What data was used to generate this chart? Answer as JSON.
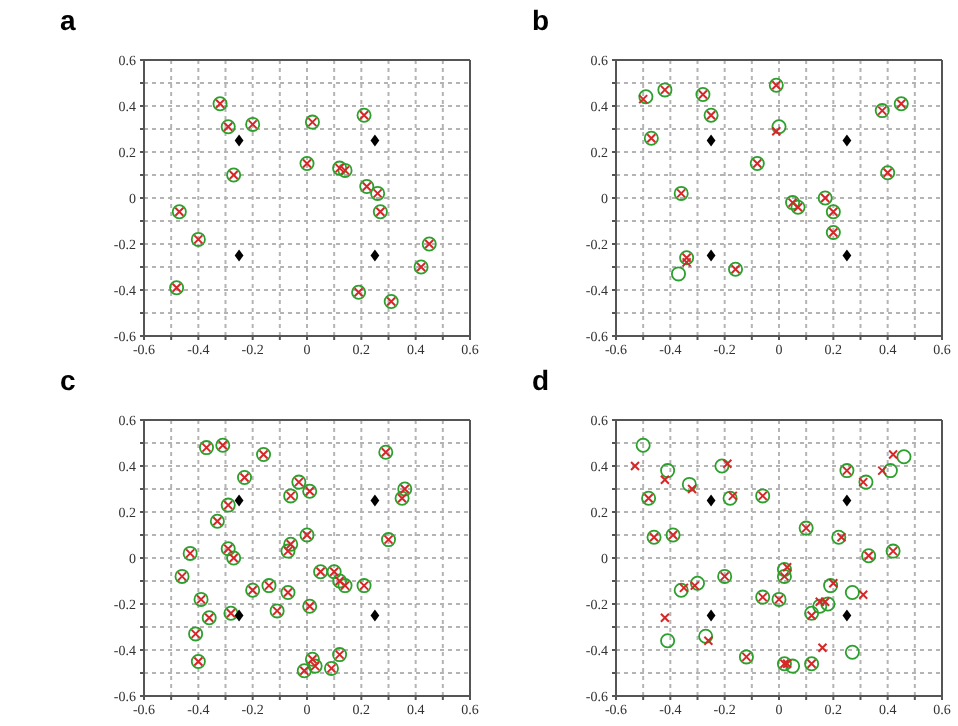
{
  "chart_data": [
    {
      "type": "scatter",
      "title": "a",
      "grid": true,
      "xlim": [
        -0.6,
        0.6
      ],
      "ylim": [
        -0.6,
        0.6
      ],
      "xticks": [
        -0.6,
        {
          "value": -0.5,
          "label": null
        },
        -0.4,
        {
          "value": -0.3,
          "label": null
        },
        -0.2,
        {
          "value": -0.1,
          "label": null
        },
        0,
        {
          "value": 0.1,
          "label": null
        },
        0.2,
        {
          "value": 0.3,
          "label": null
        },
        0.4,
        {
          "value": 0.5,
          "label": null
        },
        0.6
      ],
      "yticks": [
        -0.6,
        {
          "value": -0.5,
          "label": null
        },
        -0.4,
        {
          "value": -0.3,
          "label": null
        },
        -0.2,
        {
          "value": -0.1,
          "label": null
        },
        0,
        {
          "value": 0.1,
          "label": null
        },
        0.2,
        {
          "value": 0.3,
          "label": null
        },
        0.4,
        {
          "value": 0.5,
          "label": null
        },
        0.6
      ],
      "series": [
        {
          "color": "#2ca02c",
          "marker": "circle",
          "x": [
            -0.32,
            -0.29,
            -0.2,
            0.02,
            0.21,
            -0.27,
            0.0,
            0.12,
            0.14,
            0.22,
            0.26,
            0.27,
            -0.47,
            -0.4,
            -0.48,
            0.19,
            0.31,
            0.42,
            0.45
          ],
          "values": [
            0.41,
            0.31,
            0.32,
            0.33,
            0.36,
            0.1,
            0.15,
            0.13,
            0.12,
            0.05,
            0.02,
            -0.06,
            -0.06,
            -0.18,
            -0.39,
            -0.41,
            -0.45,
            -0.3,
            -0.2
          ]
        },
        {
          "color": "#d62728",
          "marker": "cross",
          "x": [
            -0.32,
            -0.29,
            -0.2,
            0.02,
            0.21,
            -0.27,
            0.0,
            0.12,
            0.14,
            0.22,
            0.26,
            0.27,
            -0.47,
            -0.4,
            -0.48,
            0.19,
            0.31,
            0.42,
            0.45
          ],
          "values": [
            0.41,
            0.31,
            0.32,
            0.33,
            0.36,
            0.1,
            0.15,
            0.13,
            0.12,
            0.05,
            0.02,
            -0.06,
            -0.06,
            -0.18,
            -0.39,
            -0.41,
            -0.45,
            -0.3,
            -0.2
          ]
        },
        {
          "color": "#000000",
          "marker": "diamond",
          "x": [
            -0.25,
            0.25,
            -0.25,
            0.25
          ],
          "values": [
            0.25,
            0.25,
            -0.25,
            -0.25
          ]
        }
      ]
    },
    {
      "type": "scatter",
      "title": "b",
      "grid": true,
      "xlim": [
        -0.6,
        0.6
      ],
      "ylim": [
        -0.6,
        0.6
      ],
      "xticks": [
        -0.6,
        {
          "value": -0.5,
          "label": null
        },
        -0.4,
        {
          "value": -0.3,
          "label": null
        },
        -0.2,
        {
          "value": -0.1,
          "label": null
        },
        0,
        {
          "value": 0.1,
          "label": null
        },
        0.2,
        {
          "value": 0.3,
          "label": null
        },
        0.4,
        {
          "value": 0.5,
          "label": null
        },
        0.6
      ],
      "yticks": [
        -0.6,
        {
          "value": -0.5,
          "label": null
        },
        -0.4,
        {
          "value": -0.3,
          "label": null
        },
        -0.2,
        {
          "value": -0.1,
          "label": null
        },
        0,
        {
          "value": 0.1,
          "label": null
        },
        0.2,
        {
          "value": 0.3,
          "label": null
        },
        0.4,
        {
          "value": 0.5,
          "label": null
        },
        0.6
      ],
      "series": [
        {
          "color": "#2ca02c",
          "marker": "circle",
          "x": [
            -0.49,
            -0.42,
            -0.28,
            -0.01,
            -0.25,
            -0.47,
            0.0,
            -0.08,
            -0.36,
            0.05,
            0.07,
            0.17,
            0.2,
            0.2,
            -0.16,
            -0.34,
            -0.37,
            0.38,
            0.45,
            0.4
          ],
          "values": [
            0.44,
            0.47,
            0.45,
            0.49,
            0.36,
            0.26,
            0.31,
            0.15,
            0.02,
            -0.02,
            -0.04,
            0.0,
            -0.06,
            -0.15,
            -0.31,
            -0.26,
            -0.33,
            0.38,
            0.41,
            0.11
          ]
        },
        {
          "color": "#d62728",
          "marker": "cross",
          "x": [
            -0.5,
            -0.42,
            -0.28,
            -0.01,
            -0.25,
            -0.47,
            -0.01,
            -0.08,
            -0.36,
            0.05,
            0.07,
            0.17,
            0.2,
            0.2,
            -0.16,
            -0.34,
            -0.34,
            0.38,
            0.45,
            0.4
          ],
          "values": [
            0.43,
            0.47,
            0.45,
            0.49,
            0.36,
            0.26,
            0.29,
            0.15,
            0.02,
            -0.02,
            -0.04,
            0.0,
            -0.06,
            -0.15,
            -0.31,
            -0.26,
            -0.28,
            0.38,
            0.41,
            0.11
          ]
        },
        {
          "color": "#000000",
          "marker": "diamond",
          "x": [
            -0.25,
            0.25,
            -0.25,
            0.25
          ],
          "values": [
            0.25,
            0.25,
            -0.25,
            -0.25
          ]
        }
      ]
    },
    {
      "type": "scatter",
      "title": "c",
      "grid": true,
      "xlim": [
        -0.6,
        0.6
      ],
      "ylim": [
        -0.6,
        0.6
      ],
      "xticks": [
        -0.6,
        {
          "value": -0.5,
          "label": null
        },
        -0.4,
        {
          "value": -0.3,
          "label": null
        },
        -0.2,
        {
          "value": -0.1,
          "label": null
        },
        0,
        {
          "value": 0.1,
          "label": null
        },
        0.2,
        {
          "value": 0.3,
          "label": null
        },
        0.4,
        {
          "value": 0.5,
          "label": null
        },
        0.6
      ],
      "yticks": [
        -0.6,
        {
          "value": -0.5,
          "label": null
        },
        -0.4,
        {
          "value": -0.3,
          "label": null
        },
        -0.2,
        {
          "value": -0.1,
          "label": null
        },
        0,
        {
          "value": 0.1,
          "label": null
        },
        0.2,
        {
          "value": 0.3,
          "label": null
        },
        0.4,
        {
          "value": 0.5,
          "label": null
        },
        0.6
      ],
      "series": [
        {
          "color": "#2ca02c",
          "marker": "circle",
          "x": [
            -0.37,
            -0.31,
            -0.16,
            -0.23,
            -0.29,
            -0.33,
            -0.29,
            -0.27,
            -0.43,
            -0.46,
            -0.39,
            -0.36,
            -0.28,
            -0.41,
            -0.4,
            -0.2,
            -0.14,
            -0.11,
            -0.07,
            -0.07,
            -0.06,
            -0.06,
            -0.03,
            0.01,
            0.0,
            0.01,
            0.05,
            0.1,
            0.12,
            0.14,
            0.21,
            0.12,
            0.02,
            0.03,
            -0.01,
            0.09,
            0.29,
            0.36,
            0.35,
            0.3
          ],
          "values": [
            0.48,
            0.49,
            0.45,
            0.35,
            0.23,
            0.16,
            0.04,
            0.0,
            0.02,
            -0.08,
            -0.18,
            -0.26,
            -0.24,
            -0.33,
            -0.45,
            -0.14,
            -0.12,
            -0.23,
            -0.15,
            0.03,
            0.06,
            0.27,
            0.33,
            0.29,
            0.1,
            -0.21,
            -0.06,
            -0.06,
            -0.1,
            -0.12,
            -0.12,
            -0.42,
            -0.44,
            -0.47,
            -0.49,
            -0.48,
            0.46,
            0.3,
            0.26,
            0.08
          ]
        },
        {
          "color": "#d62728",
          "marker": "cross",
          "x": [
            -0.37,
            -0.31,
            -0.16,
            -0.23,
            -0.29,
            -0.33,
            -0.29,
            -0.27,
            -0.43,
            -0.46,
            -0.39,
            -0.36,
            -0.28,
            -0.41,
            -0.4,
            -0.2,
            -0.14,
            -0.11,
            -0.07,
            -0.07,
            -0.06,
            -0.06,
            -0.03,
            0.01,
            0.0,
            0.01,
            0.05,
            0.1,
            0.12,
            0.14,
            0.21,
            0.12,
            0.02,
            0.03,
            -0.01,
            0.09,
            0.29,
            0.36,
            0.35,
            0.3
          ],
          "values": [
            0.48,
            0.49,
            0.45,
            0.35,
            0.23,
            0.16,
            0.04,
            0.0,
            0.02,
            -0.08,
            -0.18,
            -0.26,
            -0.24,
            -0.33,
            -0.45,
            -0.14,
            -0.12,
            -0.23,
            -0.15,
            0.03,
            0.06,
            0.27,
            0.33,
            0.29,
            0.1,
            -0.21,
            -0.06,
            -0.06,
            -0.1,
            -0.12,
            -0.12,
            -0.42,
            -0.44,
            -0.47,
            -0.49,
            -0.48,
            0.46,
            0.3,
            0.26,
            0.08
          ]
        },
        {
          "color": "#000000",
          "marker": "diamond",
          "x": [
            -0.25,
            0.25,
            -0.25,
            0.25
          ],
          "values": [
            0.25,
            0.25,
            -0.25,
            -0.25
          ]
        }
      ]
    },
    {
      "type": "scatter",
      "title": "d",
      "grid": true,
      "xlim": [
        -0.6,
        0.6
      ],
      "ylim": [
        -0.6,
        0.6
      ],
      "xticks": [
        -0.6,
        {
          "value": -0.5,
          "label": null
        },
        -0.4,
        {
          "value": -0.3,
          "label": null
        },
        -0.2,
        {
          "value": -0.1,
          "label": null
        },
        0,
        {
          "value": 0.1,
          "label": null
        },
        0.2,
        {
          "value": 0.3,
          "label": null
        },
        0.4,
        {
          "value": 0.5,
          "label": null
        },
        0.6
      ],
      "yticks": [
        -0.6,
        {
          "value": -0.5,
          "label": null
        },
        -0.4,
        {
          "value": -0.3,
          "label": null
        },
        -0.2,
        {
          "value": -0.1,
          "label": null
        },
        0,
        {
          "value": 0.1,
          "label": null
        },
        0.2,
        {
          "value": 0.3,
          "label": null
        },
        0.4,
        {
          "value": 0.5,
          "label": null
        },
        0.6
      ],
      "series": [
        {
          "color": "#2ca02c",
          "marker": "circle",
          "x": [
            -0.5,
            -0.41,
            -0.33,
            -0.48,
            -0.21,
            -0.18,
            -0.06,
            -0.46,
            -0.39,
            0.1,
            0.22,
            0.25,
            0.32,
            0.41,
            0.46,
            0.33,
            0.42,
            0.02,
            0.02,
            -0.2,
            -0.36,
            -0.3,
            -0.06,
            0.0,
            0.19,
            0.27,
            0.15,
            0.18,
            0.12,
            -0.41,
            -0.27,
            -0.12,
            0.02,
            0.05,
            0.12,
            0.27
          ],
          "values": [
            0.49,
            0.38,
            0.32,
            0.26,
            0.4,
            0.26,
            0.27,
            0.09,
            0.1,
            0.13,
            0.09,
            0.38,
            0.33,
            0.38,
            0.44,
            0.01,
            0.03,
            -0.05,
            -0.08,
            -0.08,
            -0.14,
            -0.11,
            -0.17,
            -0.18,
            -0.12,
            -0.15,
            -0.21,
            -0.2,
            -0.24,
            -0.36,
            -0.34,
            -0.43,
            -0.46,
            -0.47,
            -0.46,
            -0.41
          ]
        },
        {
          "color": "#d62728",
          "marker": "cross",
          "x": [
            -0.53,
            -0.42,
            -0.32,
            -0.48,
            -0.19,
            -0.17,
            -0.06,
            -0.46,
            -0.39,
            0.1,
            0.23,
            0.25,
            0.31,
            0.38,
            0.42,
            0.33,
            0.42,
            0.03,
            0.02,
            -0.2,
            -0.35,
            -0.31,
            -0.06,
            0.0,
            0.2,
            0.31,
            0.15,
            0.17,
            0.12,
            -0.42,
            -0.26,
            -0.12,
            0.02,
            0.03,
            0.12,
            0.16
          ],
          "values": [
            0.4,
            0.34,
            0.3,
            0.26,
            0.41,
            0.27,
            0.27,
            0.09,
            0.1,
            0.13,
            0.09,
            0.38,
            0.33,
            0.38,
            0.45,
            0.01,
            0.03,
            -0.04,
            -0.08,
            -0.08,
            -0.13,
            -0.12,
            -0.17,
            -0.18,
            -0.11,
            -0.16,
            -0.19,
            -0.19,
            -0.25,
            -0.26,
            -0.36,
            -0.43,
            -0.46,
            -0.46,
            -0.46,
            -0.39
          ]
        },
        {
          "color": "#000000",
          "marker": "diamond",
          "x": [
            -0.25,
            0.25,
            -0.25,
            0.25
          ],
          "values": [
            0.25,
            0.25,
            -0.25,
            -0.25
          ]
        }
      ]
    }
  ]
}
